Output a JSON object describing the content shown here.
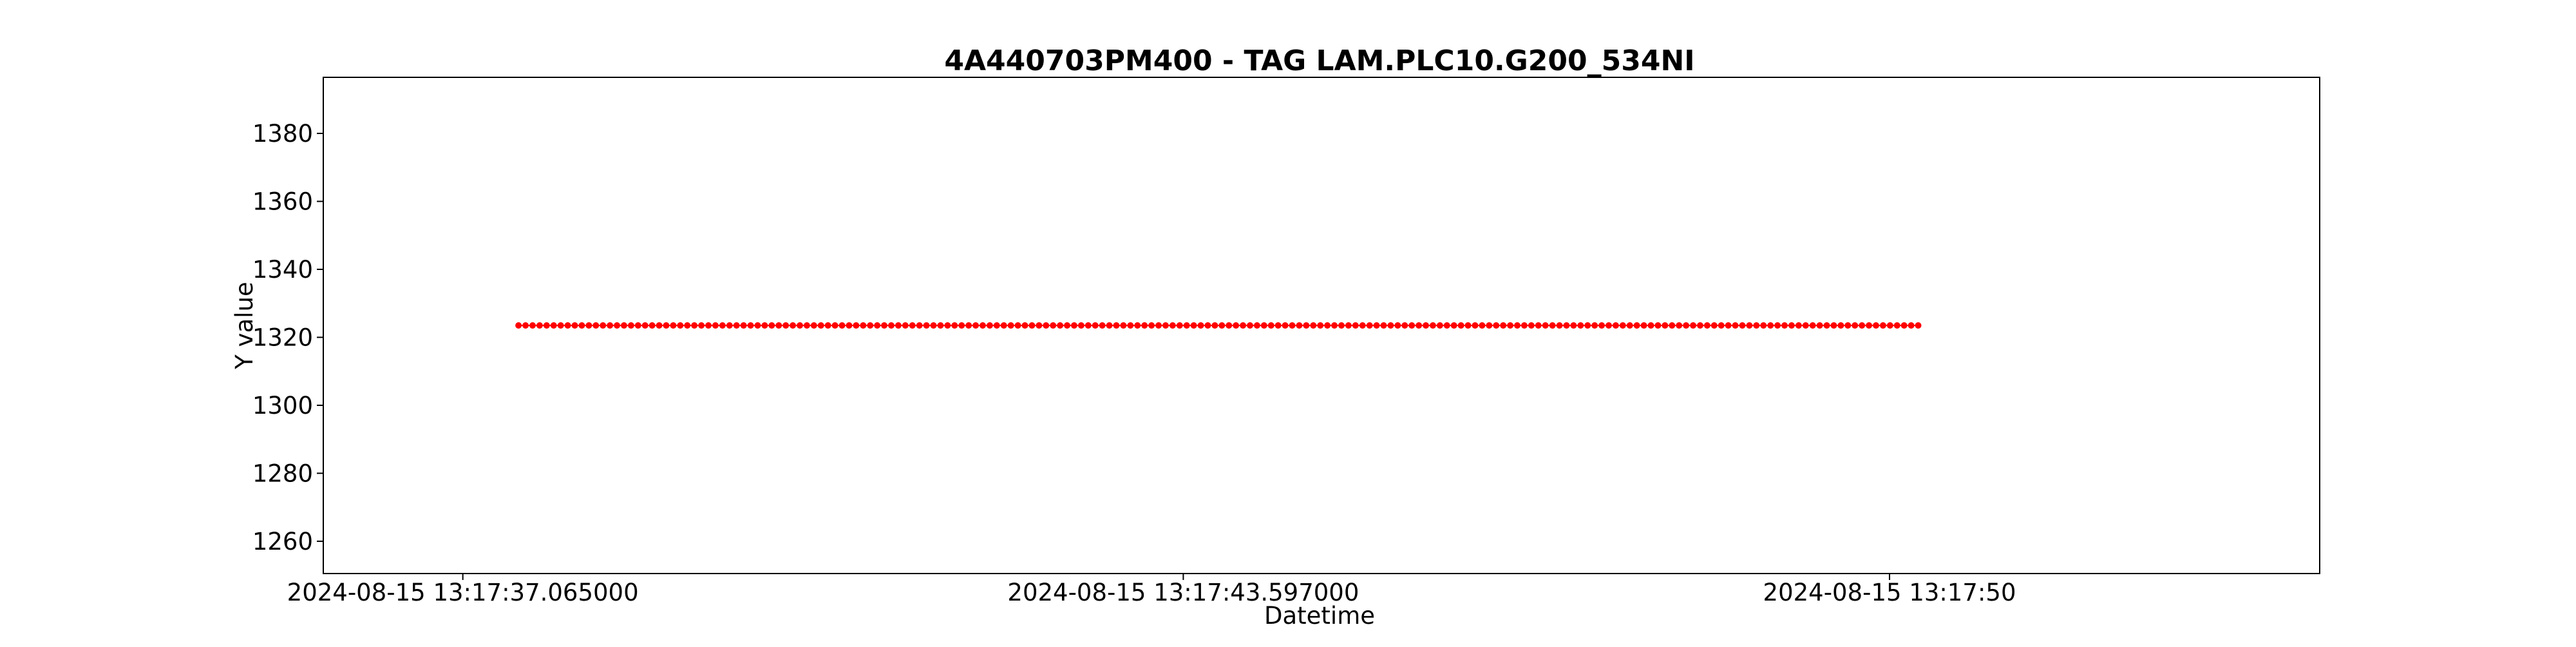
{
  "chart_data": {
    "type": "scatter",
    "title": "4A440703PM400 - TAG LAM.PLC10.G200_534NI",
    "xlabel": "Datetime",
    "ylabel": "Y value",
    "x_ticks": [
      "2024-08-15 13:17:37.065000",
      "2024-08-15 13:17:43.597000",
      "2024-08-15 13:17:50"
    ],
    "x_tick_seconds": [
      37.065,
      43.597,
      50.0
    ],
    "x_range_seconds": [
      35.8,
      53.9
    ],
    "x_first_seconds": 37.57,
    "x_last_seconds": 50.26,
    "point_count": 200,
    "y_value": 1323.5,
    "y_ticks": [
      1260,
      1280,
      1300,
      1320,
      1340,
      1360,
      1380
    ],
    "ylim": [
      1250.5,
      1396.5
    ],
    "marker_color": "#ff0000",
    "line_color": "#ff0000",
    "grid": false,
    "legend": "none"
  }
}
